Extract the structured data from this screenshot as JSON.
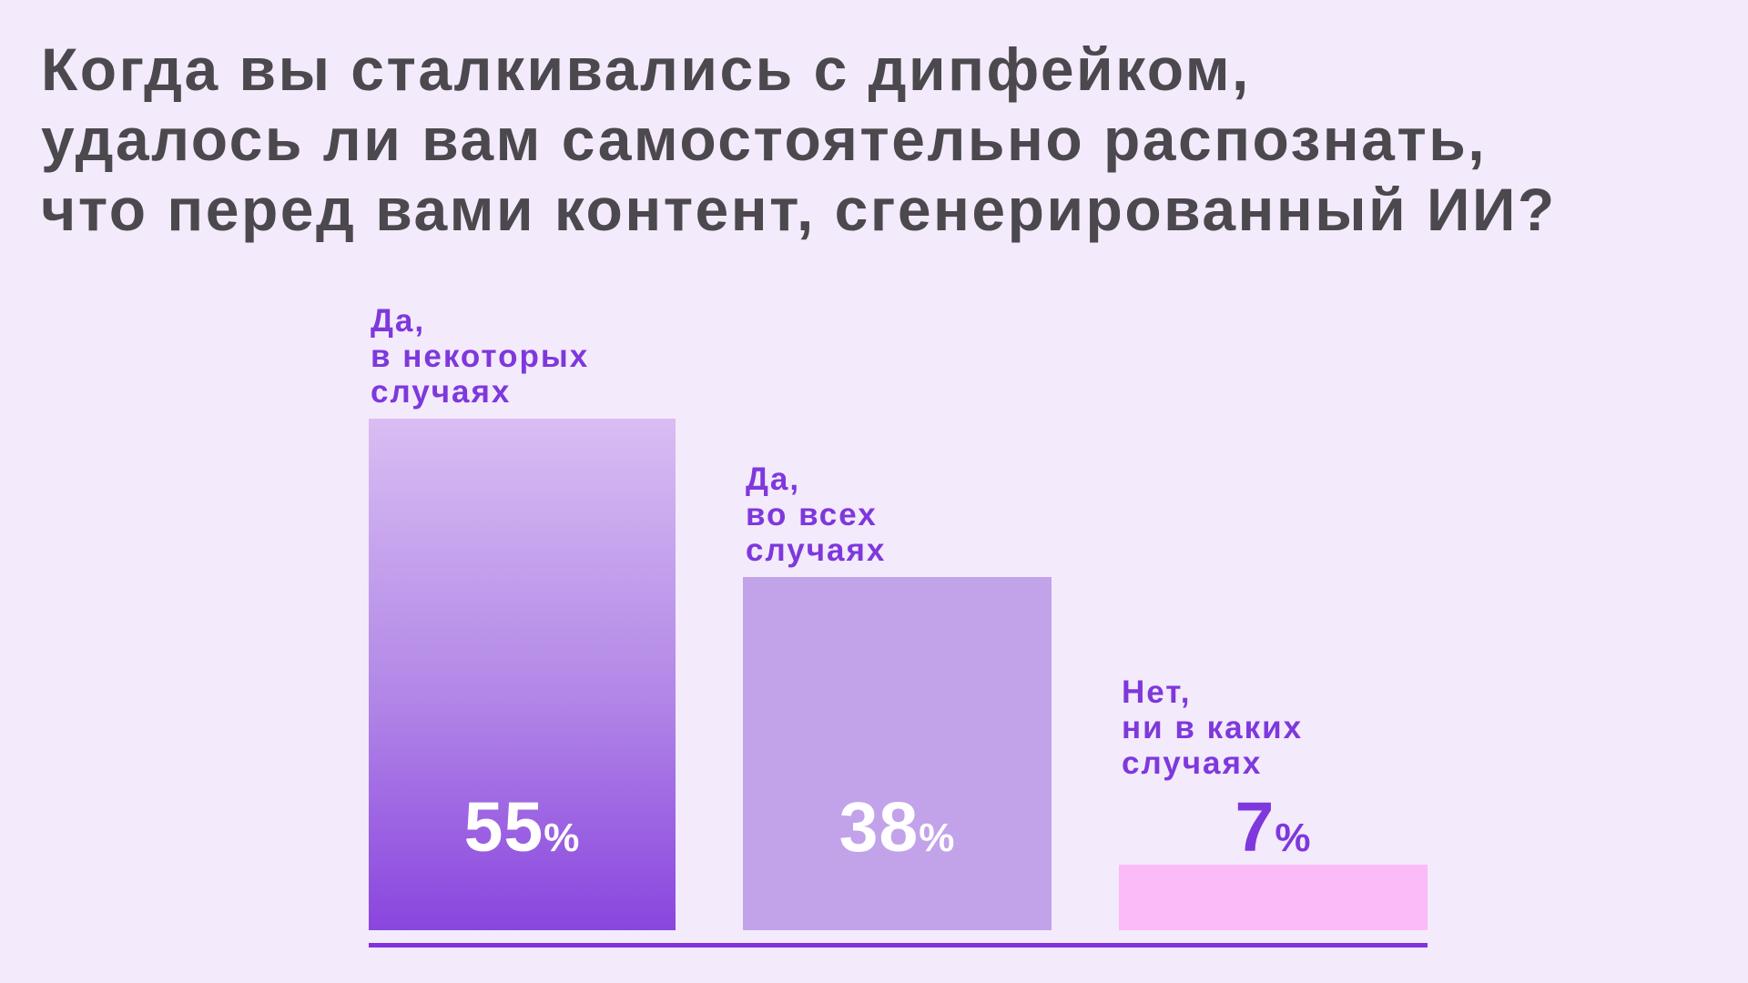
{
  "title": {
    "lines": [
      "Когда вы сталкивались с дипфейком,",
      "удалось ли вам самостоятельно распознать,",
      "что перед вами контент, сгенерированный ИИ?"
    ],
    "color": "#4b484e"
  },
  "chart_data": {
    "type": "bar",
    "title": "Когда вы сталкивались с дипфейком, удалось ли вам самостоятельно распознать, что перед вами контент, сгенерированный ИИ?",
    "categories": [
      "Да, в некоторых случаях",
      "Да, во всех случаях",
      "Нет, ни в каких случаях"
    ],
    "values": [
      55,
      38,
      7
    ],
    "unit": "%",
    "xlabel": "",
    "ylabel": "",
    "ylim": [
      0,
      60
    ],
    "grid": false,
    "legend": false,
    "baseline_shown": true,
    "bars": [
      {
        "label_lines": [
          "Да,",
          "в некоторых",
          "случаях"
        ],
        "value": 55,
        "value_position": "inside",
        "fill": "vertical gradient #d9bdf2 → #8a45de"
      },
      {
        "label_lines": [
          "Да,",
          "во всех",
          "случаях"
        ],
        "value": 38,
        "value_position": "inside",
        "fill": "#c2a3ea"
      },
      {
        "label_lines": [
          "Нет,",
          "ни в каких",
          "случаях"
        ],
        "value": 7,
        "value_position": "above",
        "fill": "#fbbaf8"
      }
    ],
    "colors": {
      "background": "#f3eafb",
      "title_text": "#4b484e",
      "label_text": "#7e38dc",
      "value_inside_text": "#ffffff",
      "value_above_text": "#7e38dc",
      "bar1_gradient_top": "#d9bdf2",
      "bar1_gradient_bottom": "#8a45de",
      "bar2_fill": "#c2a3ea",
      "bar3_fill": "#fbbaf8",
      "baseline": "#8133d9"
    }
  }
}
